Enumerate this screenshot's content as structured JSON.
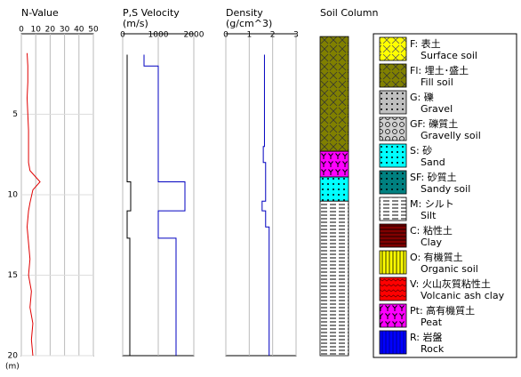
{
  "chart_data": [
    {
      "type": "line",
      "title": "N-Value",
      "xlim": [
        0,
        50
      ],
      "xticks": [
        0,
        10,
        20,
        30,
        40,
        50
      ],
      "ylim": [
        0,
        20
      ],
      "yticks": [
        5,
        10,
        15,
        20
      ],
      "y_unit": "(m)",
      "grid": true,
      "series": [
        {
          "color": "#e00000",
          "depth": [
            1.2,
            2,
            3,
            4,
            5,
            6,
            7,
            8,
            8.5,
            9.2,
            9.7,
            10.5,
            11,
            12,
            13,
            14,
            15,
            16,
            17,
            18,
            19,
            20
          ],
          "values": [
            4,
            4.5,
            4.5,
            4,
            4.5,
            5,
            5,
            5,
            6,
            13,
            8,
            6,
            5,
            4,
            5,
            6,
            5,
            7,
            6,
            8,
            7,
            8
          ]
        }
      ]
    },
    {
      "type": "line",
      "title": "P,S Velocity",
      "subtitle": "(m/s)",
      "xlim": [
        0,
        2000
      ],
      "xticks": [
        0,
        1000,
        2000
      ],
      "ylim": [
        0,
        20
      ],
      "grid": true,
      "series": [
        {
          "color": "#0000c0",
          "depth": [
            1.3,
            2,
            2,
            9.2,
            9.2,
            11,
            11,
            12.7,
            12.7,
            20
          ],
          "values": [
            600,
            600,
            1000,
            1000,
            1750,
            1750,
            1000,
            1000,
            1500,
            1500
          ]
        },
        {
          "color": "#000000",
          "depth": [
            1.3,
            9.2,
            9.2,
            11,
            11,
            12.7,
            12.7,
            20
          ],
          "values": [
            125,
            125,
            225,
            225,
            125,
            125,
            200,
            200
          ]
        }
      ]
    },
    {
      "type": "line",
      "title": "Density",
      "subtitle": "(g/cm^3)",
      "xlim": [
        0,
        3
      ],
      "xticks": [
        0,
        1,
        2,
        3
      ],
      "ylim": [
        0,
        20
      ],
      "grid": true,
      "series": [
        {
          "color": "#0000c0",
          "depth": [
            1.3,
            7,
            7,
            8,
            8,
            10.4,
            10.4,
            11,
            11,
            12,
            12,
            20
          ],
          "values": [
            1.65,
            1.65,
            1.6,
            1.6,
            1.7,
            1.7,
            1.55,
            1.55,
            1.7,
            1.7,
            1.85,
            1.85
          ]
        }
      ]
    },
    {
      "type": "soil-column",
      "title": "Soil Column",
      "ylim": [
        0,
        20
      ],
      "layers": [
        {
          "top": 0.17,
          "bottom": 7.3,
          "soil": "Fl: 埋土･盛土"
        },
        {
          "top": 7.3,
          "bottom": 8.9,
          "soil": "Pt: 高有機質土"
        },
        {
          "top": 8.9,
          "bottom": 10.4,
          "soil": "S: 砂"
        },
        {
          "top": 10.4,
          "bottom": 20,
          "soil": "M: シルト"
        }
      ],
      "legend": [
        {
          "label": "F: 表土",
          "sublabel": "Surface soil"
        },
        {
          "label": "Fl: 埋土･盛土",
          "sublabel": "Fill soil"
        },
        {
          "label": "G: 礫",
          "sublabel": "Gravel"
        },
        {
          "label": "GF: 礫質土",
          "sublabel": "Gravelly soil"
        },
        {
          "label": "S: 砂",
          "sublabel": "Sand"
        },
        {
          "label": "SF: 砂質土",
          "sublabel": "Sandy soil"
        },
        {
          "label": "M: シルト",
          "sublabel": "Silt"
        },
        {
          "label": "C: 粘性土",
          "sublabel": "Clay"
        },
        {
          "label": "O: 有機質土",
          "sublabel": "Organic soil"
        },
        {
          "label": "V: 火山灰質粘性土",
          "sublabel": "Volcanic ash clay"
        },
        {
          "label": "Pt: 高有機質土",
          "sublabel": "Peat"
        },
        {
          "label": "R: 岩盤",
          "sublabel": "Rock"
        }
      ]
    }
  ]
}
